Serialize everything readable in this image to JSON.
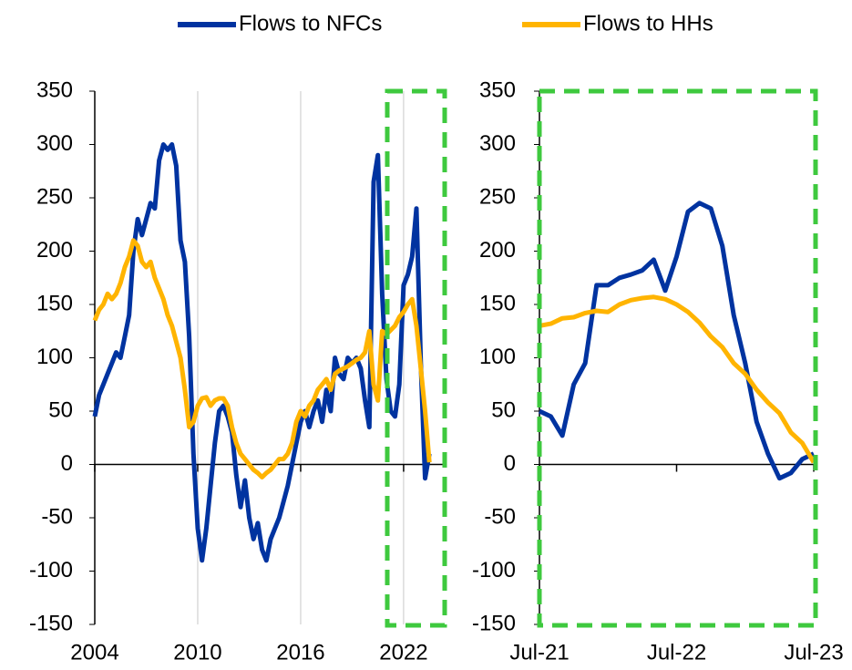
{
  "chart_data": [
    {
      "type": "line",
      "x": [
        2004,
        2004.25,
        2004.5,
        2004.75,
        2005,
        2005.25,
        2005.5,
        2005.75,
        2006,
        2006.25,
        2006.5,
        2006.75,
        2007,
        2007.25,
        2007.5,
        2007.75,
        2008,
        2008.25,
        2008.5,
        2008.75,
        2009,
        2009.25,
        2009.5,
        2009.75,
        2010,
        2010.25,
        2010.5,
        2010.75,
        2011,
        2011.25,
        2011.5,
        2011.75,
        2012,
        2012.25,
        2012.5,
        2012.75,
        2013,
        2013.25,
        2013.5,
        2013.75,
        2014,
        2014.25,
        2014.5,
        2014.75,
        2015,
        2015.25,
        2015.5,
        2015.75,
        2016,
        2016.25,
        2016.5,
        2016.75,
        2017,
        2017.25,
        2017.5,
        2017.75,
        2018,
        2018.25,
        2018.5,
        2018.75,
        2019,
        2019.25,
        2019.5,
        2019.75,
        2020,
        2020.25,
        2020.5,
        2020.75,
        2021,
        2021.25,
        2021.5,
        2021.75,
        2022,
        2022.25,
        2022.5,
        2022.75,
        2023,
        2023.25,
        2023.5
      ],
      "series": [
        {
          "name": "Flows to NFCs",
          "color": "#0033a0",
          "values": [
            45,
            65,
            75,
            85,
            95,
            105,
            100,
            120,
            140,
            200,
            230,
            215,
            230,
            245,
            240,
            285,
            300,
            295,
            300,
            280,
            210,
            190,
            120,
            10,
            -60,
            -90,
            -60,
            -20,
            20,
            50,
            55,
            45,
            30,
            -10,
            -40,
            -15,
            -50,
            -70,
            -55,
            -80,
            -90,
            -70,
            -60,
            -50,
            -35,
            -20,
            0,
            20,
            40,
            50,
            35,
            50,
            60,
            40,
            70,
            50,
            100,
            85,
            80,
            100,
            95,
            100,
            90,
            60,
            35,
            265,
            290,
            160,
            80,
            50,
            45,
            75,
            168,
            178,
            195,
            240,
            95,
            -13,
            10
          ]
        },
        {
          "name": "Flows to HHs",
          "color": "#ffb400",
          "values": [
            135,
            145,
            150,
            160,
            155,
            160,
            170,
            185,
            195,
            210,
            205,
            190,
            185,
            190,
            175,
            165,
            155,
            140,
            130,
            115,
            100,
            70,
            35,
            40,
            55,
            62,
            63,
            55,
            60,
            62,
            62,
            55,
            35,
            20,
            10,
            5,
            0,
            -5,
            -8,
            -12,
            -8,
            -5,
            0,
            5,
            5,
            10,
            20,
            40,
            50,
            45,
            55,
            60,
            70,
            75,
            80,
            70,
            85,
            88,
            90,
            92,
            95,
            98,
            100,
            105,
            125,
            75,
            60,
            125,
            122,
            126,
            130,
            138,
            143,
            150,
            155,
            130,
            90,
            50,
            2
          ]
        }
      ],
      "xlim": [
        2004,
        2024.5
      ],
      "xticks": [
        2004,
        2010,
        2016,
        2022
      ],
      "ylim": [
        -150,
        350
      ],
      "yticks": [
        -150,
        -100,
        -50,
        0,
        50,
        100,
        150,
        200,
        250,
        300,
        350
      ],
      "xgrid": true
    },
    {
      "type": "line",
      "categories": [
        "Jul-21",
        null,
        null,
        null,
        null,
        null,
        null,
        null,
        null,
        null,
        null,
        null,
        "Jul-22",
        null,
        null,
        null,
        null,
        null,
        null,
        null,
        null,
        null,
        null,
        null,
        "Jul-23"
      ],
      "series": [
        {
          "name": "Flows to NFCs",
          "color": "#0033a0",
          "values": [
            50,
            45,
            27,
            75,
            95,
            168,
            168,
            175,
            178,
            182,
            192,
            163,
            195,
            237,
            245,
            240,
            205,
            140,
            95,
            40,
            10,
            -13,
            -8,
            5,
            10
          ]
        },
        {
          "name": "Flows to HHs",
          "color": "#ffb400",
          "values": [
            130,
            132,
            137,
            138,
            142,
            144,
            143,
            150,
            154,
            156,
            157,
            155,
            150,
            143,
            133,
            120,
            110,
            95,
            85,
            70,
            58,
            48,
            30,
            20,
            2
          ]
        }
      ],
      "ylim": [
        -150,
        350
      ],
      "yticks": [
        -150,
        -100,
        -50,
        0,
        50,
        100,
        150,
        200,
        250,
        300,
        350
      ],
      "xgrid": false
    }
  ]
}
